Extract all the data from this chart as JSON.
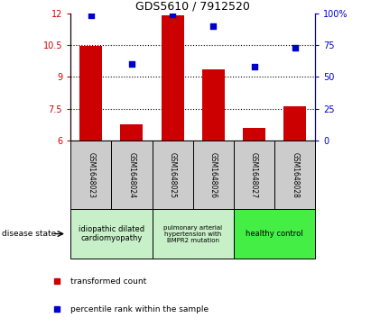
{
  "title": "GDS5610 / 7912520",
  "samples": [
    "GSM1648023",
    "GSM1648024",
    "GSM1648025",
    "GSM1648026",
    "GSM1648027",
    "GSM1648028"
  ],
  "transformed_count": [
    10.45,
    6.75,
    11.9,
    9.35,
    6.6,
    7.6
  ],
  "percentile_rank": [
    98,
    60,
    99,
    90,
    58,
    73
  ],
  "ylim_left": [
    6,
    12
  ],
  "ylim_right": [
    0,
    100
  ],
  "yticks_left": [
    6,
    7.5,
    9,
    10.5,
    12
  ],
  "yticks_right": [
    0,
    25,
    50,
    75,
    100
  ],
  "bar_color": "#cc0000",
  "dot_color": "#0000cc",
  "groups": [
    {
      "label": "idiopathic dilated\ncardiomyopathy",
      "start": 0,
      "end": 2,
      "color": "#c8f0c8"
    },
    {
      "label": "pulmonary arterial\nhypertension with\nBMPR2 mutation",
      "start": 2,
      "end": 4,
      "color": "#c8f0c8"
    },
    {
      "label": "healthy control",
      "start": 4,
      "end": 6,
      "color": "#44ee44"
    }
  ],
  "legend_red_label": "transformed count",
  "legend_blue_label": "percentile rank within the sample",
  "tick_color_left": "#cc0000",
  "tick_color_right": "#0000cc",
  "sample_box_color": "#cccccc",
  "ytick_dotted": [
    7.5,
    9,
    10.5
  ]
}
